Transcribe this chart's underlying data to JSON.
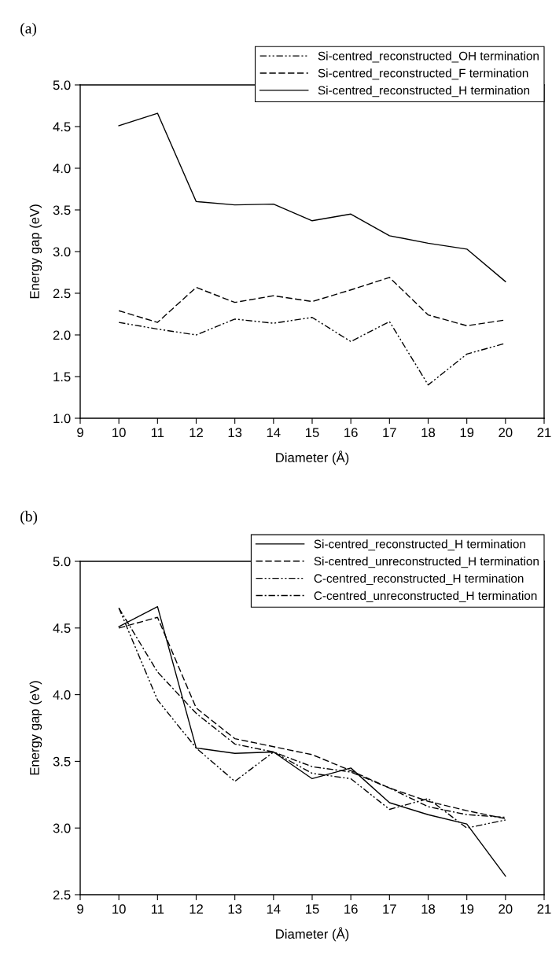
{
  "chart_data": [
    {
      "type": "line",
      "title": "(a)",
      "xlabel": "Diameter (Å)",
      "ylabel": "Energy gap (eV)",
      "x": [
        10,
        11,
        12,
        13,
        14,
        15,
        16,
        17,
        18,
        19,
        20
      ],
      "xlim": [
        9,
        21
      ],
      "xticks": [
        9,
        10,
        11,
        12,
        13,
        14,
        15,
        16,
        17,
        18,
        19,
        20,
        21
      ],
      "ylim": [
        1.0,
        5.0
      ],
      "yticks": [
        {
          "value": 1.0,
          "label": "1.0"
        },
        {
          "value": 1.5,
          "label": "1.5"
        },
        {
          "value": 2.0,
          "label": "2.0"
        },
        {
          "value": 2.5,
          "label": "2.5"
        },
        {
          "value": 3.0,
          "label": "3.0"
        },
        {
          "value": 3.5,
          "label": "3.5"
        },
        {
          "value": 4.0,
          "label": "4.0"
        },
        {
          "value": 4.5,
          "label": "4.5"
        },
        {
          "value": 5.0,
          "label": "5.0"
        }
      ],
      "grid": false,
      "legend": "top right",
      "marker": "none",
      "series": [
        {
          "name": "Si-centred_reconstructed_OH termination",
          "color": "#000000",
          "line_style": "dashdotdot",
          "values": [
            2.15,
            2.07,
            2.0,
            2.19,
            2.14,
            2.21,
            1.92,
            2.16,
            1.4,
            1.77,
            1.9
          ]
        },
        {
          "name": "Si-centred_reconstructed_F termination",
          "color": "#000000",
          "line_style": "dashed",
          "values": [
            2.29,
            2.15,
            2.57,
            2.39,
            2.47,
            2.4,
            2.54,
            2.69,
            2.24,
            2.11,
            2.18
          ]
        },
        {
          "name": "Si-centred_reconstructed_H termination",
          "color": "#000000",
          "line_style": "solid",
          "values": [
            4.51,
            4.66,
            3.6,
            3.56,
            3.57,
            3.37,
            3.45,
            3.19,
            3.1,
            3.03,
            2.64
          ]
        }
      ]
    },
    {
      "type": "line",
      "title": "(b)",
      "xlabel": "Diameter (Å)",
      "ylabel": "Energy gap (eV)",
      "x": [
        10,
        11,
        12,
        13,
        14,
        15,
        16,
        17,
        18,
        19,
        20
      ],
      "xlim": [
        9,
        21
      ],
      "xticks": [
        9,
        10,
        11,
        12,
        13,
        14,
        15,
        16,
        17,
        18,
        19,
        20,
        21
      ],
      "ylim": [
        2.5,
        5.0
      ],
      "yticks": [
        {
          "value": 2.5,
          "label": "2.5"
        },
        {
          "value": 3.0,
          "label": "3.0"
        },
        {
          "value": 3.5,
          "label": "3.5"
        },
        {
          "value": 4.0,
          "label": "4.0"
        },
        {
          "value": 4.5,
          "label": "4.5"
        },
        {
          "value": 5.0,
          "label": "5.0"
        }
      ],
      "grid": false,
      "legend": "top right",
      "marker": "none",
      "series": [
        {
          "name": "Si-centred_reconstructed_H termination",
          "color": "#000000",
          "line_style": "solid",
          "values": [
            4.51,
            4.66,
            3.6,
            3.56,
            3.57,
            3.37,
            3.45,
            3.19,
            3.1,
            3.03,
            2.64
          ]
        },
        {
          "name": "Si-centred_unreconstructed_H termination",
          "color": "#000000",
          "line_style": "dashed",
          "values": [
            4.5,
            4.58,
            3.9,
            3.67,
            3.61,
            3.55,
            3.43,
            3.3,
            3.2,
            3.13,
            3.07
          ]
        },
        {
          "name": "C-centred_reconstructed_H termination",
          "color": "#000000",
          "line_style": "dashdotdot",
          "values": [
            4.65,
            3.96,
            3.6,
            3.35,
            3.57,
            3.41,
            3.37,
            3.14,
            3.22,
            3.0,
            3.06
          ]
        },
        {
          "name": "C-centred_unreconstructed_H termination",
          "color": "#000000",
          "line_style": "dashdot",
          "values": [
            4.65,
            4.17,
            3.86,
            3.63,
            3.57,
            3.46,
            3.42,
            3.3,
            3.16,
            3.1,
            3.08
          ]
        }
      ]
    }
  ]
}
